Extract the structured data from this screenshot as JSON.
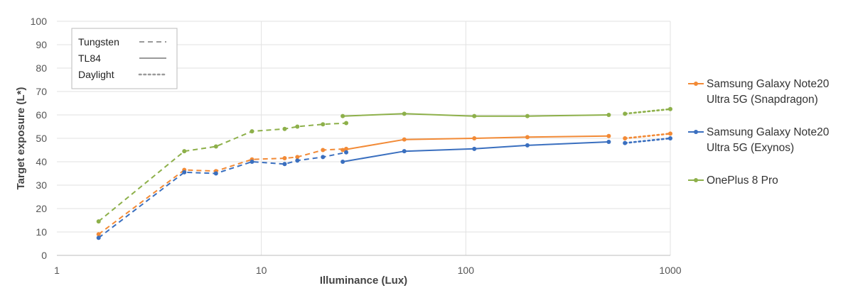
{
  "chart_data": {
    "type": "line",
    "title": "",
    "xlabel": "Illuminance (Lux)",
    "ylabel": "Target exposure (L*)",
    "x_scale": "log",
    "xlim": [
      1,
      1000
    ],
    "ylim": [
      0,
      100
    ],
    "x_ticks": [
      "1",
      "10",
      "100",
      "1000"
    ],
    "y_ticks": [
      "0",
      "10",
      "20",
      "30",
      "40",
      "50",
      "60",
      "70",
      "80",
      "90",
      "100"
    ],
    "grid": true,
    "line_style_legend": {
      "position": "top-left",
      "items": [
        {
          "label": "Tungsten",
          "style": "dashed"
        },
        {
          "label": "TL84",
          "style": "solid"
        },
        {
          "label": "Daylight",
          "style": "dotted"
        }
      ]
    },
    "series_legend_position": "right",
    "series": [
      {
        "name": "Samsung Galaxy Note20 Ultra 5G (Snapdragon)",
        "legend_lines": [
          "Samsung Galaxy Note20",
          "Ultra 5G (Snapdragon)"
        ],
        "color": "#F28A36",
        "segments": [
          {
            "style": "dashed",
            "x": [
              1.6,
              4.2,
              6,
              9,
              13,
              15,
              20,
              26
            ],
            "y": [
              9,
              36.5,
              36,
              41,
              41.5,
              42,
              45,
              45.5
            ]
          },
          {
            "style": "solid",
            "x": [
              25,
              50,
              110,
              200,
              500
            ],
            "y": [
              45,
              49.5,
              50,
              50.5,
              51
            ]
          },
          {
            "style": "dotted",
            "x": [
              600,
              1000
            ],
            "y": [
              50,
              52
            ]
          }
        ]
      },
      {
        "name": "Samsung Galaxy Note20 Ultra 5G (Exynos)",
        "legend_lines": [
          "Samsung Galaxy Note20",
          "Ultra 5G (Exynos)"
        ],
        "color": "#3A6FBF",
        "segments": [
          {
            "style": "dashed",
            "x": [
              1.6,
              4.2,
              6,
              9,
              13,
              15,
              20,
              26
            ],
            "y": [
              7.5,
              35.5,
              35,
              40,
              39,
              40.5,
              42,
              44
            ]
          },
          {
            "style": "solid",
            "x": [
              25,
              50,
              110,
              200,
              500
            ],
            "y": [
              40,
              44.5,
              45.5,
              47,
              48.5
            ]
          },
          {
            "style": "dotted",
            "x": [
              600,
              1000
            ],
            "y": [
              48,
              50
            ]
          }
        ]
      },
      {
        "name": "OnePlus 8 Pro",
        "legend_lines": [
          "OnePlus 8 Pro"
        ],
        "color": "#8DB04A",
        "segments": [
          {
            "style": "dashed",
            "x": [
              1.6,
              4.2,
              6,
              9,
              13,
              15,
              20,
              26
            ],
            "y": [
              14.5,
              44.5,
              46.5,
              53,
              54,
              55,
              56,
              56.5
            ]
          },
          {
            "style": "solid",
            "x": [
              25,
              50,
              110,
              200,
              500
            ],
            "y": [
              59.5,
              60.5,
              59.5,
              59.5,
              60
            ]
          },
          {
            "style": "dotted",
            "x": [
              600,
              1000
            ],
            "y": [
              60.5,
              62.5
            ]
          }
        ]
      }
    ]
  }
}
